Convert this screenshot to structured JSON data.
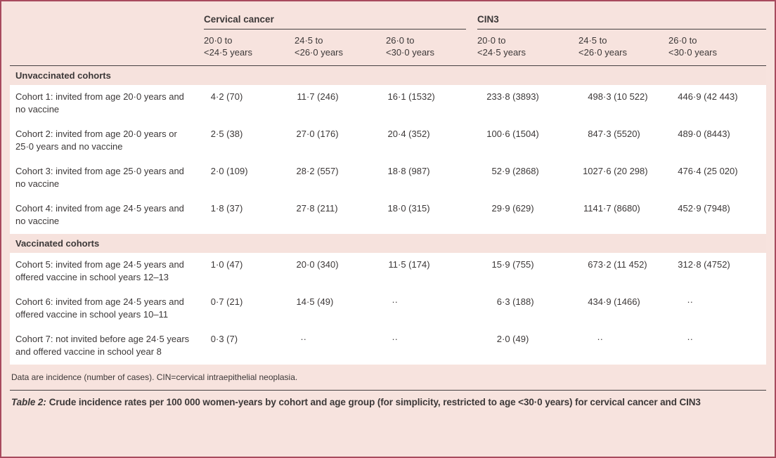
{
  "colors": {
    "page_background": "#f7e3de",
    "outer_border": "#a84a5e",
    "section_band": "#f6e2dd",
    "rule": "#454042",
    "text": "#3c3838",
    "row_background": "#ffffff"
  },
  "table": {
    "column_groups": [
      {
        "label": "Cervical cancer",
        "columns": [
          "20·0 to\n<24·5 years",
          "24·5 to\n<26·0 years",
          "26·0 to\n<30·0 years"
        ]
      },
      {
        "label": "CIN3",
        "columns": [
          "20·0 to\n<24·5 years",
          "24·5 to\n<26·0 years",
          "26·0 to\n<30·0 years"
        ]
      }
    ],
    "missing_marker": "··",
    "sections": [
      {
        "label": "Unvaccinated cohorts",
        "rows": [
          {
            "label": "Cohort 1: invited from age 20·0 years and no vaccine",
            "values": [
              "4·2 (70)",
              "11·7 (246)",
              "16·1 (1532)",
              "233·8 (3893)",
              "498·3 (10 522)",
              "446·9 (42 443)"
            ]
          },
          {
            "label": "Cohort 2: invited from age 20·0 years or 25·0 years and no vaccine",
            "values": [
              "2·5 (38)",
              "27·0 (176)",
              "20·4 (352)",
              "100·6 (1504)",
              "847·3 (5520)",
              "489·0 (8443)"
            ]
          },
          {
            "label": "Cohort 3: invited from age 25·0 years and no vaccine",
            "values": [
              "2·0 (109)",
              "28·2 (557)",
              "18·8 (987)",
              "52·9 (2868)",
              "1027·6 (20 298)",
              "476·4 (25 020)"
            ]
          },
          {
            "label": "Cohort 4: invited from age 24·5 years and no vaccine",
            "values": [
              "1·8 (37)",
              "27·8 (211)",
              "18·0 (315)",
              "29·9 (629)",
              "1141·7 (8680)",
              "452·9 (7948)"
            ]
          }
        ]
      },
      {
        "label": "Vaccinated cohorts",
        "rows": [
          {
            "label": "Cohort 5: invited from age 24·5 years and offered vaccine in school years 12–13",
            "values": [
              "1·0 (47)",
              "20·0 (340)",
              "11·5 (174)",
              "15·9 (755)",
              "673·2 (11 452)",
              "312·8 (4752)"
            ]
          },
          {
            "label": "Cohort 6: invited from age 24·5 years and offered vaccine in school years 10–11",
            "values": [
              "0·7 (21)",
              "14·5 (49)",
              "··",
              "6·3 (188)",
              "434·9 (1466)",
              "··"
            ]
          },
          {
            "label": "Cohort 7: not invited before age 24·5 years and offered vaccine in school year 8",
            "values": [
              "0·3 (7)",
              "··",
              "··",
              "2·0 (49)",
              "··",
              "··"
            ]
          }
        ]
      }
    ],
    "footnote": "Data are incidence (number of cases). CIN=cervical intraepithelial neoplasia.",
    "caption_label": "Table 2:",
    "caption_text": "Crude incidence rates per 100 000 women-years by cohort and age group (for simplicity, restricted to age <30·0 years) for cervical cancer and CIN3"
  }
}
